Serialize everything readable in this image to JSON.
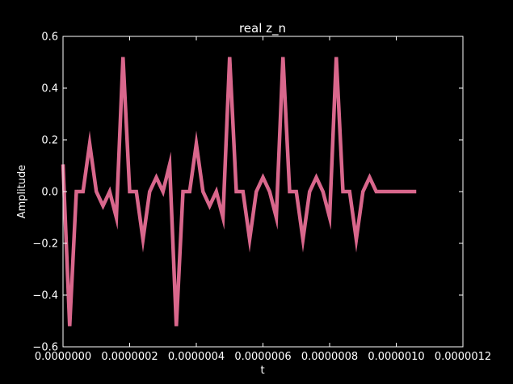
{
  "chart_data": {
    "type": "line",
    "title": "real z_n",
    "xlabel": "t",
    "ylabel": "Amplitude",
    "xlim": [
      0,
      1.2e-06
    ],
    "ylim": [
      -0.6,
      0.6
    ],
    "xticks": [
      0,
      2e-07,
      4e-07,
      6e-07,
      8e-07,
      1e-06,
      1.2e-06
    ],
    "xtick_labels": [
      "0.0000000",
      "0.0000002",
      "0.0000004",
      "0.0000006",
      "0.0000008",
      "0.0000010",
      "0.0000012"
    ],
    "yticks": [
      -0.6,
      -0.4,
      -0.2,
      0.0,
      0.2,
      0.4,
      0.6
    ],
    "ytick_labels": [
      "−0.6",
      "−0.4",
      "−0.2",
      "0.0",
      "0.2",
      "0.4",
      "0.6"
    ],
    "grid": false,
    "background": "#000000",
    "axis_color": "#ffffff",
    "series": [
      {
        "color": "#d9678c",
        "x": [
          0,
          2e-08,
          4e-08,
          6e-08,
          8e-08,
          1e-07,
          1.2e-07,
          1.4e-07,
          1.6e-07,
          1.8e-07,
          2e-07,
          2.2e-07,
          2.4e-07,
          2.6e-07,
          2.8e-07,
          3e-07,
          3.2e-07,
          3.4e-07,
          3.6e-07,
          3.8e-07,
          4e-07,
          4.2e-07,
          4.4e-07,
          4.6e-07,
          4.8e-07,
          5e-07,
          5.2e-07,
          5.4e-07,
          5.6e-07,
          5.8e-07,
          6e-07,
          6.2e-07,
          6.4e-07,
          6.6e-07,
          6.8e-07,
          7e-07,
          7.2e-07,
          7.4e-07,
          7.6e-07,
          7.8e-07,
          8e-07,
          8.2e-07,
          8.4e-07,
          8.6e-07,
          8.8e-07,
          9e-07,
          9.2e-07,
          9.4e-07,
          9.6e-07,
          9.8e-07,
          1e-06,
          1.02e-06,
          1.04e-06,
          1.06e-06
        ],
        "y": [
          0.105,
          -0.52,
          0.0,
          0.0,
          0.185,
          0.0,
          -0.055,
          0.0,
          -0.1,
          0.52,
          0.0,
          0.0,
          -0.185,
          0.0,
          0.055,
          0.0,
          0.105,
          -0.52,
          0.0,
          0.0,
          0.185,
          0.0,
          -0.055,
          0.0,
          -0.1,
          0.52,
          0.0,
          0.0,
          -0.185,
          0.0,
          0.055,
          0.0,
          -0.1,
          0.52,
          0.0,
          0.0,
          -0.185,
          0.0,
          0.055,
          0.0,
          -0.1,
          0.52,
          0.0,
          0.0,
          -0.185,
          0.0,
          0.055,
          0.0,
          0.0,
          0.0,
          0.0,
          0.0,
          0.0,
          0.0
        ]
      }
    ]
  }
}
